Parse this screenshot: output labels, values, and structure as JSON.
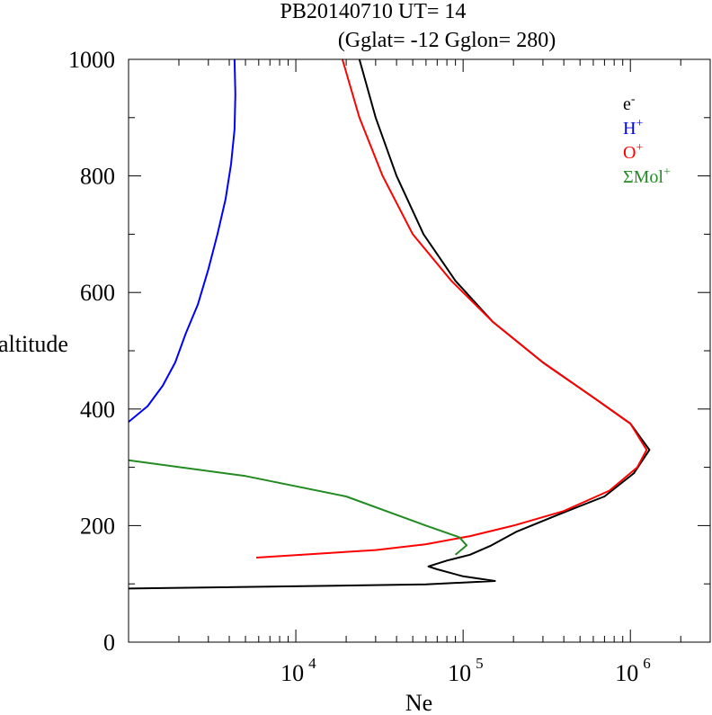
{
  "chart_data": {
    "type": "line",
    "title": "PB20140710   UT=  14",
    "subtitle": "(Gglat= -12   Gglon=  280)",
    "xlabel": "Ne",
    "ylabel": "altitude",
    "x_scale": "log",
    "xlim": [
      1000,
      3000000
    ],
    "ylim": [
      0,
      1000
    ],
    "y_ticks": [
      "0",
      "200",
      "400",
      "600",
      "800",
      "1000"
    ],
    "x_ticks": [
      {
        "base": "10",
        "exp": "4",
        "value": 10000
      },
      {
        "base": "10",
        "exp": "5",
        "value": 100000
      },
      {
        "base": "10",
        "exp": "6",
        "value": 1000000
      }
    ],
    "legend_position": "top-right",
    "grid": false,
    "series": [
      {
        "name": "e",
        "sup": "-",
        "color": "#000000",
        "points": [
          [
            1000,
            92
          ],
          [
            60000,
            99
          ],
          [
            155000,
            105
          ],
          [
            100000,
            113
          ],
          [
            70000,
            125
          ],
          [
            62000,
            130
          ],
          [
            80000,
            140
          ],
          [
            110000,
            150
          ],
          [
            145000,
            165
          ],
          [
            210000,
            190
          ],
          [
            380000,
            220
          ],
          [
            700000,
            250
          ],
          [
            1050000,
            290
          ],
          [
            1300000,
            330
          ],
          [
            1000000,
            375
          ],
          [
            600000,
            420
          ],
          [
            300000,
            480
          ],
          [
            150000,
            550
          ],
          [
            90000,
            620
          ],
          [
            58000,
            700
          ],
          [
            40000,
            800
          ],
          [
            30000,
            900
          ],
          [
            24000,
            1000
          ]
        ]
      },
      {
        "name": "H",
        "sup": "+",
        "color": "#0000ff",
        "points": [
          [
            1000,
            378
          ],
          [
            1300,
            405
          ],
          [
            1600,
            440
          ],
          [
            1900,
            480
          ],
          [
            2200,
            530
          ],
          [
            2600,
            580
          ],
          [
            3000,
            640
          ],
          [
            3400,
            700
          ],
          [
            3800,
            760
          ],
          [
            4100,
            820
          ],
          [
            4300,
            880
          ],
          [
            4350,
            940
          ],
          [
            4300,
            1000
          ]
        ]
      },
      {
        "name": "O",
        "sup": "+",
        "color": "#ff0000",
        "points": [
          [
            5800,
            145
          ],
          [
            30000,
            158
          ],
          [
            60000,
            168
          ],
          [
            110000,
            182
          ],
          [
            200000,
            200
          ],
          [
            400000,
            225
          ],
          [
            750000,
            260
          ],
          [
            1100000,
            300
          ],
          [
            1250000,
            330
          ],
          [
            1000000,
            375
          ],
          [
            600000,
            420
          ],
          [
            300000,
            480
          ],
          [
            150000,
            550
          ],
          [
            85000,
            620
          ],
          [
            50000,
            700
          ],
          [
            33000,
            800
          ],
          [
            24000,
            900
          ],
          [
            19000,
            1000
          ]
        ]
      },
      {
        "name": "ΣMol",
        "sup": "+",
        "color": "#228B22",
        "points": [
          [
            1000,
            312
          ],
          [
            5000,
            285
          ],
          [
            20000,
            250
          ],
          [
            60000,
            200
          ],
          [
            95000,
            180
          ],
          [
            105000,
            166
          ],
          [
            90000,
            150
          ]
        ]
      }
    ]
  }
}
